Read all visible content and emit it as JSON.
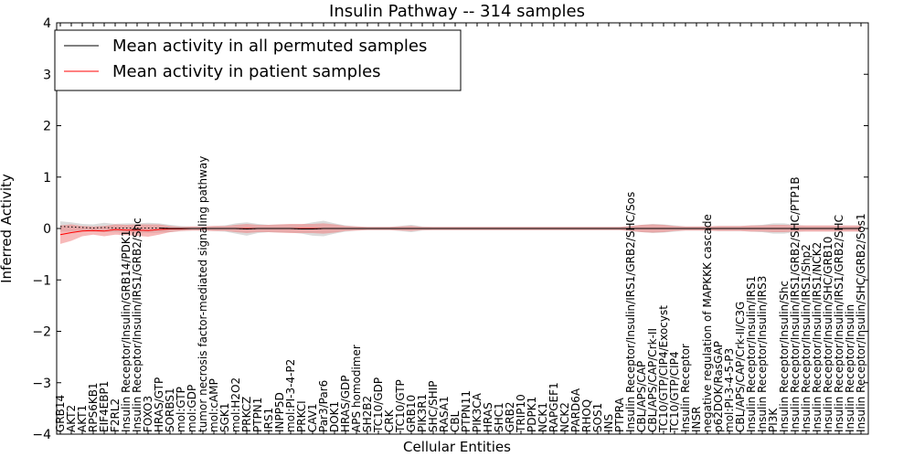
{
  "chart_data": {
    "type": "line",
    "title": "Insulin Pathway -- 314 samples",
    "xlabel": "Cellular Entities",
    "ylabel": "Inferred Activity",
    "ylim": [
      -4,
      4
    ],
    "yticks": [
      -4,
      -3,
      -2,
      -1,
      0,
      1,
      2,
      3,
      4
    ],
    "legend_position": "top-left",
    "categories": [
      "GRB14",
      "AKT2",
      "AKT1",
      "RPS6KB1",
      "EIF4EBP1",
      "F2RL2",
      "Insulin Receptor/Insulin/GRB14/PDK1",
      "Insulin Receptor/Insulin/IRS1/GRB2/Shc",
      "FOXO3",
      "HRAS/GTP",
      "SORBS1",
      "mol:GTP",
      "mol:GDP",
      "tumor necrosis factor-mediated signaling pathway",
      "mol:cAMP",
      "SGK1",
      "mol:H2O2",
      "PRKCZ",
      "PTPN1",
      "IRS1",
      "INPP5D",
      "mol:PI-3-4-P2",
      "PRKCI",
      "CAV1",
      "Par3/Par6",
      "DOK1",
      "HRAS/GDP",
      "APS homodimer",
      "SH2B2",
      "TC10/GDP",
      "CRK",
      "TC10/GTP",
      "GRB10",
      "PIK3R1",
      "SHC/SHIP",
      "RASA1",
      "CBL",
      "PTPN11",
      "PIK3CA",
      "HRAS",
      "SHC1",
      "GRB2",
      "TRIP10",
      "PDPK1",
      "NCK1",
      "RAPGEF1",
      "NCK2",
      "PARD6A",
      "RHOQ",
      "SOS1",
      "INS",
      "PTPRA",
      "Insulin Receptor/Insulin/IRS1/GRB2/SHC/Sos",
      "CBL/APS/CAP",
      "CBL/APS/CAP/Crk-II",
      "TC10/GTP/CIP4/Exocyst",
      "TC10/GTP/CIP4",
      "Insulin Receptor",
      "INSR",
      "negative regulation of MAPKKK cascade",
      "p62DOK/RasGAP",
      "mol:PI-3-4-5-P3",
      "CBL/APS/CAP/Crk-II/C3G",
      "Insulin Receptor/Insulin/IRS1",
      "Insulin Receptor/Insulin/IRS3",
      "PI3K",
      "Insulin Receptor/Insulin/Shc",
      "Insulin Receptor/Insulin/IRS1/GRB2/SHC/PTP1B",
      "Insulin Receptor/Insulin/IRS1/Shp2",
      "Insulin Receptor/Insulin/IRS1/NCK2",
      "Insulin Receptor/Insulin/SHC/GRB10",
      "Insulin Receptor/Insulin/IRS1/GRB2/SHC",
      "Insulin Receptor/Insulin",
      "Insulin Receptor/Insulin/SHC/GRB2/Sos1"
    ],
    "series": [
      {
        "name": "Mean activity in all permuted samples",
        "color": "#000000",
        "band_color": "#b0b0b0",
        "values": [
          0.04,
          0.03,
          0.02,
          0.01,
          0.02,
          0.01,
          0.01,
          0.01,
          0.01,
          0.01,
          0.0,
          0.0,
          0.0,
          0.0,
          0.0,
          0.0,
          0.0,
          -0.01,
          0.0,
          0.0,
          0.0,
          0.0,
          -0.01,
          -0.01,
          0.0,
          0.0,
          0.0,
          0.0,
          0.0,
          0.0,
          0.0,
          0.0,
          0.0,
          0.0,
          0.0,
          0.0,
          0.0,
          0.0,
          0.0,
          0.0,
          0.0,
          0.0,
          0.0,
          0.0,
          0.0,
          0.0,
          0.0,
          0.0,
          0.0,
          0.0,
          0.0,
          0.0,
          0.0,
          0.0,
          0.0,
          0.0,
          0.0,
          0.0,
          0.0,
          0.0,
          0.0,
          0.0,
          0.0,
          0.0,
          0.0,
          0.0,
          0.0,
          0.0,
          0.0,
          0.0,
          0.0,
          0.0,
          0.0,
          0.0
        ],
        "spread": [
          0.1,
          0.09,
          0.07,
          0.07,
          0.09,
          0.08,
          0.09,
          0.09,
          0.1,
          0.09,
          0.07,
          0.05,
          0.04,
          0.04,
          0.05,
          0.06,
          0.1,
          0.13,
          0.09,
          0.07,
          0.08,
          0.08,
          0.09,
          0.13,
          0.15,
          0.1,
          0.06,
          0.04,
          0.03,
          0.03,
          0.03,
          0.05,
          0.07,
          0.04,
          0.03,
          0.03,
          0.03,
          0.03,
          0.03,
          0.03,
          0.03,
          0.03,
          0.03,
          0.03,
          0.03,
          0.03,
          0.03,
          0.03,
          0.03,
          0.03,
          0.03,
          0.03,
          0.05,
          0.07,
          0.09,
          0.08,
          0.06,
          0.04,
          0.04,
          0.04,
          0.05,
          0.05,
          0.05,
          0.06,
          0.07,
          0.1,
          0.1,
          0.07,
          0.05,
          0.05,
          0.05,
          0.05,
          0.05,
          0.05
        ]
      },
      {
        "name": "Mean activity in patient samples",
        "color": "#ff0000",
        "band_color": "#f08080",
        "values": [
          -0.12,
          -0.08,
          -0.05,
          -0.04,
          -0.05,
          -0.02,
          -0.03,
          -0.03,
          -0.04,
          -0.02,
          -0.01,
          -0.01,
          0.0,
          0.0,
          0.0,
          0.0,
          0.0,
          0.0,
          0.0,
          0.0,
          0.0,
          0.0,
          0.0,
          0.0,
          0.0,
          0.0,
          0.0,
          0.0,
          0.0,
          0.0,
          0.0,
          0.0,
          0.0,
          0.0,
          0.0,
          0.0,
          0.0,
          0.0,
          0.0,
          0.0,
          0.0,
          0.0,
          0.0,
          0.0,
          0.0,
          0.0,
          0.0,
          0.0,
          0.0,
          0.0,
          0.0,
          0.0,
          0.0,
          0.0,
          0.0,
          0.0,
          0.0,
          0.0,
          0.0,
          0.0,
          0.0,
          0.0,
          0.0,
          0.0,
          0.0,
          0.0,
          0.0,
          0.0,
          0.0,
          0.0,
          0.0,
          0.0,
          0.0,
          0.0
        ],
        "spread": [
          0.18,
          0.16,
          0.1,
          0.08,
          0.1,
          0.1,
          0.1,
          0.11,
          0.12,
          0.1,
          0.06,
          0.04,
          0.04,
          0.04,
          0.05,
          0.05,
          0.07,
          0.09,
          0.07,
          0.07,
          0.08,
          0.09,
          0.09,
          0.09,
          0.1,
          0.08,
          0.05,
          0.04,
          0.03,
          0.03,
          0.03,
          0.04,
          0.05,
          0.03,
          0.03,
          0.03,
          0.03,
          0.03,
          0.03,
          0.03,
          0.03,
          0.03,
          0.03,
          0.03,
          0.03,
          0.03,
          0.03,
          0.03,
          0.03,
          0.03,
          0.03,
          0.03,
          0.05,
          0.07,
          0.08,
          0.07,
          0.05,
          0.04,
          0.04,
          0.04,
          0.05,
          0.05,
          0.05,
          0.06,
          0.06,
          0.07,
          0.07,
          0.06,
          0.06,
          0.06,
          0.06,
          0.06,
          0.06,
          0.06
        ]
      }
    ]
  }
}
